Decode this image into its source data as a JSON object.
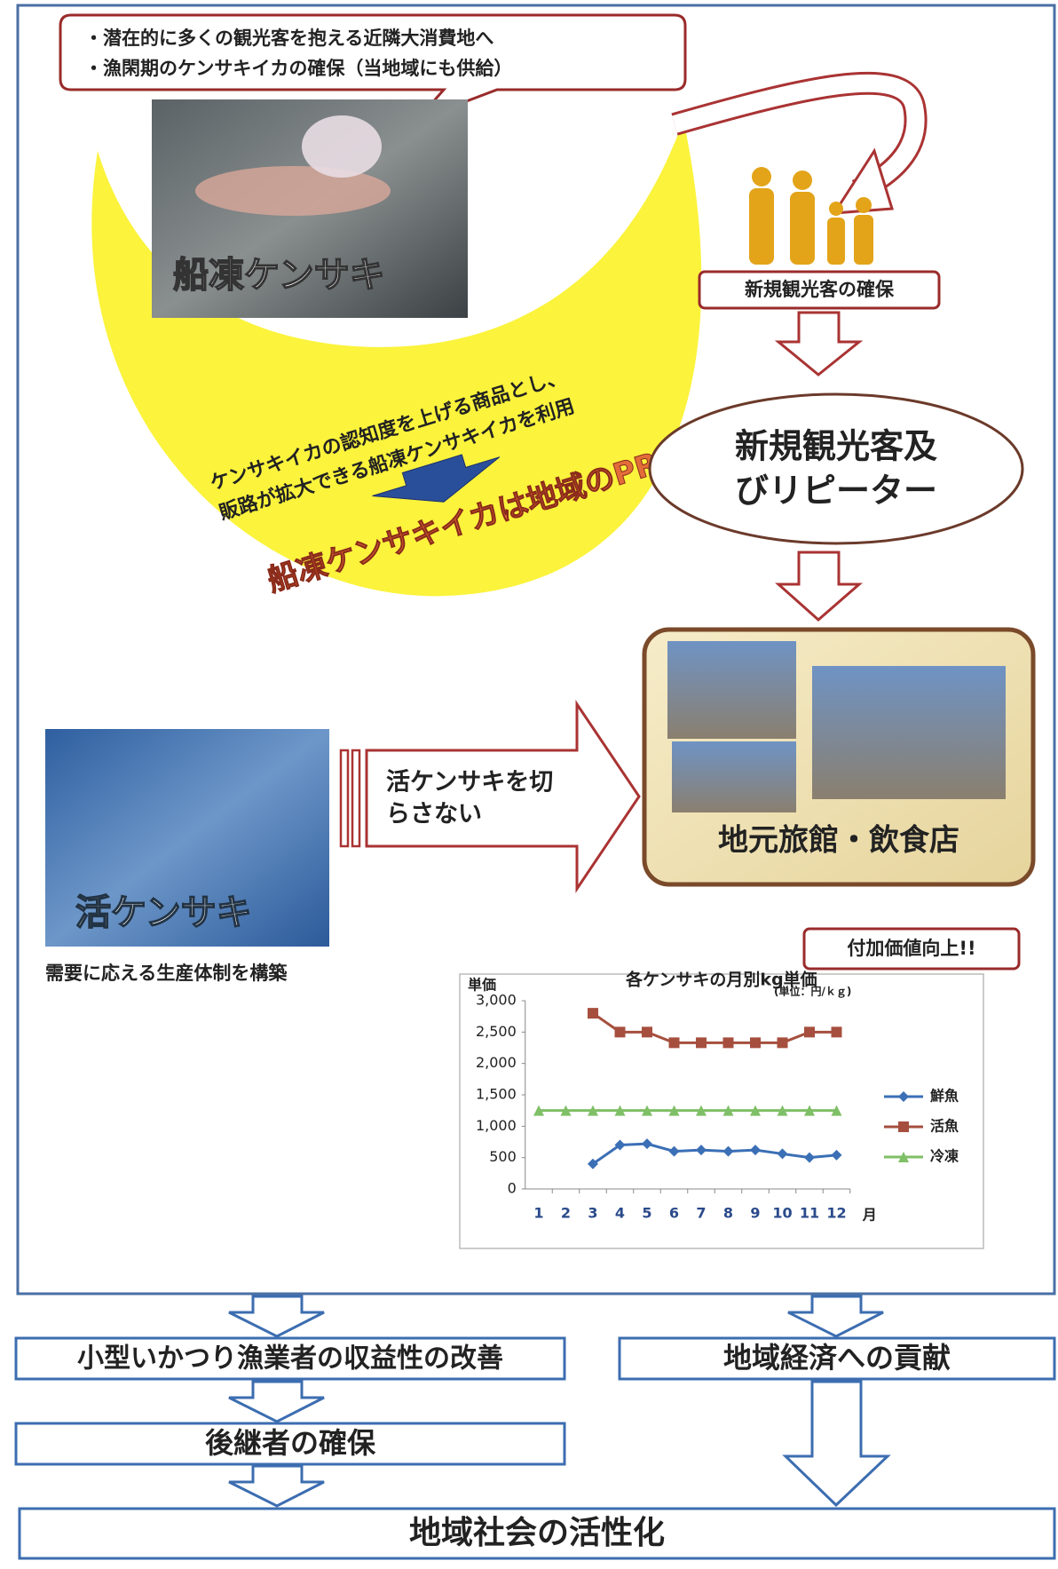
{
  "callout": {
    "lines": [
      "・潜在的に多くの観光客を抱える近隣大消費地へ",
      "・漁閑期のケンサキイカの確保（当地域にも供給）"
    ]
  },
  "photos": {
    "frozen": {
      "label": "船凍ケンサキ"
    },
    "live": {
      "label": "活ケンサキ",
      "caption": "需要に応える生産体制を構築"
    }
  },
  "crescent": {
    "text_lines": [
      "ケンサキイカの認知度を上げる商品とし、",
      "販路が拡大できる船凍ケンサキイカを利用"
    ],
    "slogan": "船凍ケンサキイカは地域のPR役!!"
  },
  "flow": {
    "new_tourists": "新規観光客の確保",
    "tourists_repeaters": [
      "新規観光客及",
      "びリピーター"
    ],
    "live_supply": [
      "活ケンサキを切",
      "らさない"
    ],
    "local_business": "地元旅館・飲食店"
  },
  "chart_badge": "付加価値向上!!",
  "chart_data": {
    "type": "line",
    "title": "各ケンサキの月別kg単価",
    "unit_note": "(単位：円/ｋｇ)",
    "y_label": "単価",
    "x_label": "月",
    "categories": [
      "1",
      "2",
      "3",
      "4",
      "5",
      "6",
      "7",
      "8",
      "9",
      "10",
      "11",
      "12"
    ],
    "ylim": [
      0,
      3000
    ],
    "yticks": [
      0,
      500,
      {
        "value": 1000,
        "label": "1,000"
      },
      {
        "value": 1500,
        "label": "1,500"
      },
      {
        "value": 2000,
        "label": "2,000"
      },
      {
        "value": 2500,
        "label": "2,500"
      },
      {
        "value": 3000,
        "label": "3,000"
      }
    ],
    "grid": false,
    "legend": "right",
    "series": [
      {
        "name": "鮮魚",
        "color": "#3b6fb6",
        "marker": "diamond",
        "values": [
          null,
          null,
          400,
          700,
          720,
          600,
          620,
          600,
          620,
          560,
          500,
          540
        ]
      },
      {
        "name": "活魚",
        "color": "#a64f3e",
        "marker": "square",
        "values": [
          null,
          null,
          2800,
          2500,
          2500,
          2330,
          2330,
          2330,
          2330,
          2330,
          2500,
          2500
        ]
      },
      {
        "name": "冷凍",
        "color": "#7fbf66",
        "marker": "triangle",
        "values": [
          1250,
          1250,
          1250,
          1250,
          1250,
          1250,
          1250,
          1250,
          1250,
          1250,
          1250,
          1250
        ]
      }
    ]
  },
  "outcomes": {
    "profitability": "小型いかつり漁業者の収益性の改善",
    "regional_economy": "地域経済への貢献",
    "successors": "後継者の確保",
    "community": "地域社会の活性化"
  }
}
